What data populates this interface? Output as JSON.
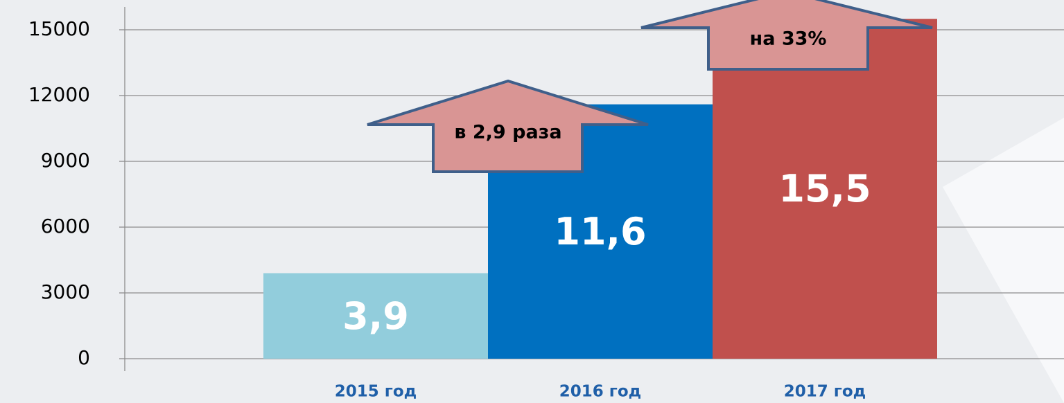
{
  "chart_data": {
    "type": "bar",
    "categories": [
      "2015 год",
      "2016 год",
      "2017 год"
    ],
    "values": [
      3900,
      11600,
      15500
    ],
    "value_labels": [
      "3,9",
      "11,6",
      "15,5"
    ],
    "colors": [
      "#92cddc",
      "#0070c0",
      "#c0504d"
    ],
    "ylim": [
      0,
      15000
    ],
    "yticks": [
      0,
      3000,
      6000,
      9000,
      12000,
      15000
    ],
    "grid": true,
    "annotations": [
      "в 2,9 раза",
      "на 33%"
    ]
  }
}
